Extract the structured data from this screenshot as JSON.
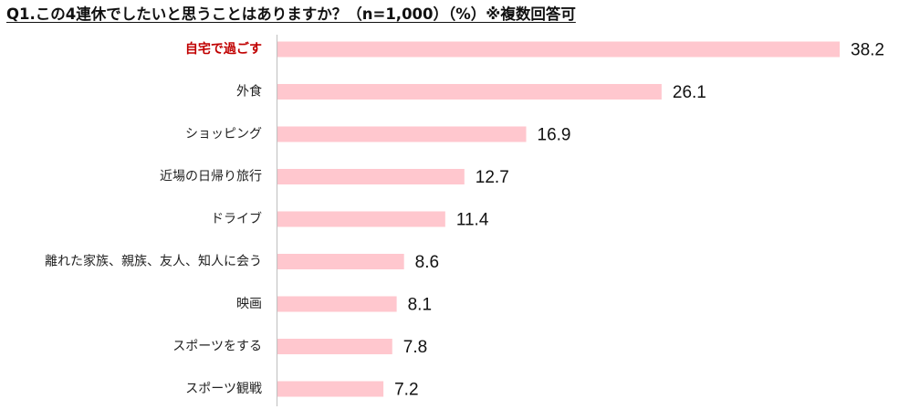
{
  "title": "Q1.この4連休でしたいと思うことはありますか？（n=1,000）（%）※複数回答可",
  "colors": {
    "bar": "#ffc7ce",
    "highlight_label": "#c00000",
    "axis": "#bfbfbf"
  },
  "chart_data": {
    "type": "bar",
    "orientation": "horizontal",
    "categories": [
      "自宅で過ごす",
      "外食",
      "ショッピング",
      "近場の日帰り旅行",
      "ドライブ",
      "離れた家族、親族、友人、知人に会う",
      "映画",
      "スポーツをする",
      "スポーツ観戦"
    ],
    "values": [
      38.2,
      26.1,
      16.9,
      12.7,
      11.4,
      8.6,
      8.1,
      7.8,
      7.2
    ],
    "value_labels": [
      "38.2",
      "26.1",
      "16.9",
      "12.7",
      "11.4",
      "8.6",
      "8.1",
      "7.8",
      "7.2"
    ],
    "highlight_index": 0,
    "xlim": [
      0,
      38.2
    ],
    "grid": false,
    "legend": "none"
  }
}
